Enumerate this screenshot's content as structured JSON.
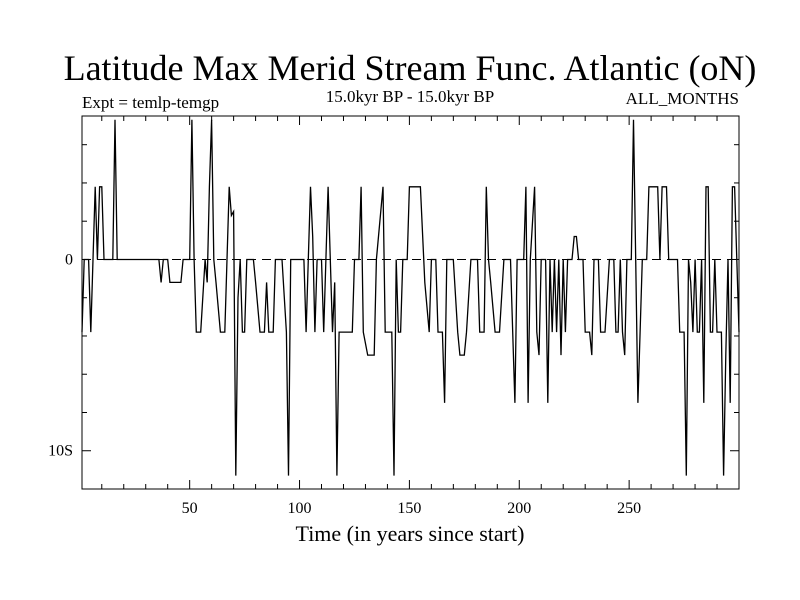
{
  "chart_data": {
    "type": "line",
    "title": "Latitude Max Merid Stream Func. Atlantic (oN)",
    "subtitle_left": "Expt = temlp-temgp",
    "subtitle_center": "15.0kyr BP - 15.0kyr BP",
    "subtitle_right": "ALL_MONTHS",
    "xlabel": "Time (in years since start)",
    "ylabel": "",
    "xlim": [
      1,
      300
    ],
    "ylim": [
      -12,
      7.5
    ],
    "x_ticks": [
      50,
      100,
      150,
      200,
      250
    ],
    "x_tick_labels": [
      "50",
      "100",
      "150",
      "200",
      "250"
    ],
    "y_ticks": [
      0,
      -10
    ],
    "y_tick_labels": [
      "0",
      "10S"
    ],
    "reference_line": {
      "y": 0,
      "style": "dashed"
    },
    "series": [
      {
        "name": "temlp-temgp",
        "points": [
          [
            1,
            -3.8
          ],
          [
            2,
            0
          ],
          [
            4,
            0
          ],
          [
            5,
            -3.8
          ],
          [
            7,
            3.8
          ],
          [
            8,
            0
          ],
          [
            9,
            3.8
          ],
          [
            10,
            3.8
          ],
          [
            11,
            0
          ],
          [
            15,
            0
          ],
          [
            16,
            7.3
          ],
          [
            17,
            0
          ],
          [
            36,
            0
          ],
          [
            37,
            -1.2
          ],
          [
            38,
            0
          ],
          [
            40,
            0
          ],
          [
            41,
            -1.2
          ],
          [
            46,
            -1.2
          ],
          [
            47,
            0
          ],
          [
            50,
            0
          ],
          [
            51,
            7.3
          ],
          [
            52,
            0
          ],
          [
            53,
            -3.8
          ],
          [
            55,
            -3.8
          ],
          [
            57,
            0
          ],
          [
            58,
            -1.2
          ],
          [
            59,
            3.8
          ],
          [
            60,
            7.3
          ],
          [
            61,
            0
          ],
          [
            62,
            -1.2
          ],
          [
            64,
            -3.8
          ],
          [
            66,
            -3.8
          ],
          [
            67,
            0
          ],
          [
            68,
            3.8
          ],
          [
            69,
            2.3
          ],
          [
            70,
            2.5
          ],
          [
            71,
            -11.3
          ],
          [
            72,
            -2
          ],
          [
            73,
            0
          ],
          [
            74,
            -3.8
          ],
          [
            75,
            -3.8
          ],
          [
            76,
            0
          ],
          [
            79,
            0
          ],
          [
            80,
            -1.2
          ],
          [
            82,
            -3.8
          ],
          [
            84,
            -3.8
          ],
          [
            85,
            -1.2
          ],
          [
            86,
            -3.8
          ],
          [
            88,
            -3.8
          ],
          [
            89,
            0
          ],
          [
            92,
            0
          ],
          [
            94,
            -3.8
          ],
          [
            95,
            -11.3
          ],
          [
            96,
            0
          ],
          [
            102,
            0
          ],
          [
            103,
            -3.8
          ],
          [
            104,
            0
          ],
          [
            105,
            3.8
          ],
          [
            106,
            1.2
          ],
          [
            107,
            -3.8
          ],
          [
            108,
            0
          ],
          [
            110,
            0
          ],
          [
            111,
            -3.8
          ],
          [
            113,
            3.8
          ],
          [
            114,
            0
          ],
          [
            115,
            -3.8
          ],
          [
            116,
            -1.2
          ],
          [
            117,
            -11.3
          ],
          [
            118,
            -3.8
          ],
          [
            124,
            -3.8
          ],
          [
            125,
            0
          ],
          [
            127,
            0
          ],
          [
            128,
            3.8
          ],
          [
            129,
            -3.8
          ],
          [
            131,
            -5
          ],
          [
            134,
            -5
          ],
          [
            135,
            0
          ],
          [
            138,
            3.8
          ],
          [
            139,
            -3.8
          ],
          [
            142,
            -3.8
          ],
          [
            143,
            -11.3
          ],
          [
            144,
            0
          ],
          [
            145,
            -3.8
          ],
          [
            146,
            -3.8
          ],
          [
            147,
            0
          ],
          [
            149,
            0
          ],
          [
            150,
            3.8
          ],
          [
            155,
            3.8
          ],
          [
            157,
            -1.2
          ],
          [
            159,
            -3.8
          ],
          [
            160,
            0
          ],
          [
            162,
            0
          ],
          [
            163,
            -3.8
          ],
          [
            165,
            -3.8
          ],
          [
            166,
            -7.5
          ],
          [
            167,
            0
          ],
          [
            170,
            0
          ],
          [
            172,
            -3.8
          ],
          [
            173,
            -5
          ],
          [
            175,
            -5
          ],
          [
            176,
            -3.8
          ],
          [
            178,
            0
          ],
          [
            181,
            0
          ],
          [
            182,
            -3.8
          ],
          [
            184,
            -3.8
          ],
          [
            185,
            3.8
          ],
          [
            186,
            0
          ],
          [
            187,
            -1.2
          ],
          [
            189,
            -3.8
          ],
          [
            191,
            -3.8
          ],
          [
            193,
            0
          ],
          [
            196,
            0
          ],
          [
            197,
            -3.8
          ],
          [
            198,
            -7.5
          ],
          [
            199,
            0
          ],
          [
            202,
            0
          ],
          [
            203,
            3.8
          ],
          [
            204,
            -7.5
          ],
          [
            205,
            0
          ],
          [
            207,
            3.8
          ],
          [
            208,
            -3.8
          ],
          [
            209,
            -5
          ],
          [
            210,
            0
          ],
          [
            212,
            0
          ],
          [
            213,
            -7.5
          ],
          [
            214,
            0
          ],
          [
            215,
            -3.8
          ],
          [
            216,
            0
          ],
          [
            217,
            -3.8
          ],
          [
            218,
            0
          ],
          [
            219,
            -5
          ],
          [
            220,
            0
          ],
          [
            221,
            -3.8
          ],
          [
            222,
            0
          ],
          [
            224,
            0
          ],
          [
            225,
            1.2
          ],
          [
            226,
            1.2
          ],
          [
            227,
            0
          ],
          [
            229,
            0
          ],
          [
            230,
            -3.8
          ],
          [
            232,
            -3.8
          ],
          [
            233,
            -5
          ],
          [
            234,
            0
          ],
          [
            236,
            0
          ],
          [
            237,
            -3.8
          ],
          [
            239,
            -3.8
          ],
          [
            241,
            0
          ],
          [
            243,
            0
          ],
          [
            244,
            -3.8
          ],
          [
            245,
            -3.8
          ],
          [
            246,
            0
          ],
          [
            247,
            -3.8
          ],
          [
            248,
            -5
          ],
          [
            249,
            0
          ],
          [
            251,
            0
          ],
          [
            252,
            7.3
          ],
          [
            253,
            0
          ],
          [
            254,
            -7.5
          ],
          [
            255,
            -3.8
          ],
          [
            256,
            0
          ],
          [
            258,
            0
          ],
          [
            259,
            3.8
          ],
          [
            263,
            3.8
          ],
          [
            264,
            0
          ],
          [
            265,
            3.8
          ],
          [
            267,
            3.8
          ],
          [
            268,
            0
          ],
          [
            272,
            0
          ],
          [
            273,
            -3.8
          ],
          [
            275,
            -3.8
          ],
          [
            276,
            -11.3
          ],
          [
            277,
            0
          ],
          [
            278,
            -1.2
          ],
          [
            279,
            -3.8
          ],
          [
            280,
            0
          ],
          [
            281,
            -3.8
          ],
          [
            282,
            -3.8
          ],
          [
            283,
            0
          ],
          [
            284,
            -7.5
          ],
          [
            285,
            3.8
          ],
          [
            286,
            3.8
          ],
          [
            287,
            -3.8
          ],
          [
            288,
            -3.8
          ],
          [
            289,
            0
          ],
          [
            290,
            -3.8
          ],
          [
            292,
            -3.8
          ],
          [
            293,
            -11.3
          ],
          [
            294,
            -5
          ],
          [
            295,
            0
          ],
          [
            296,
            -7.5
          ],
          [
            297,
            3.8
          ],
          [
            298,
            3.8
          ],
          [
            300,
            -3.8
          ]
        ]
      }
    ]
  }
}
